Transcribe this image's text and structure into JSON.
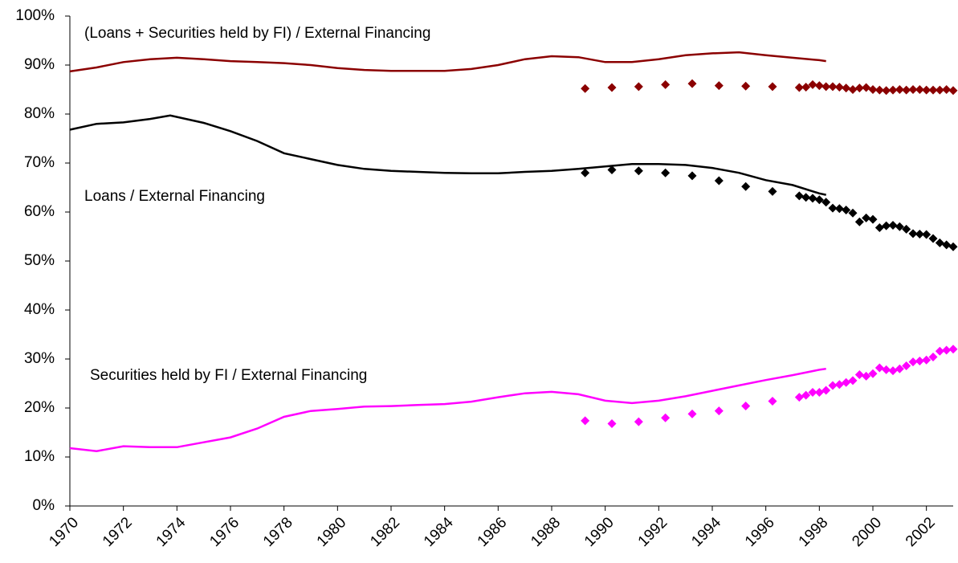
{
  "chart_data": {
    "type": "line",
    "xlim": [
      1970,
      2003
    ],
    "xticks": [
      1970,
      1972,
      1974,
      1976,
      1978,
      1980,
      1982,
      1984,
      1986,
      1988,
      1990,
      1992,
      1994,
      1996,
      1998,
      2000,
      2002
    ],
    "ylim": [
      0,
      100
    ],
    "yticks": [
      {
        "value": 0,
        "label": "0%"
      },
      {
        "value": 10,
        "label": "10%"
      },
      {
        "value": 20,
        "label": "20%"
      },
      {
        "value": 30,
        "label": "30%"
      },
      {
        "value": 40,
        "label": "40%"
      },
      {
        "value": 50,
        "label": "50%"
      },
      {
        "value": 60,
        "label": "60%"
      },
      {
        "value": 70,
        "label": "70%"
      },
      {
        "value": 80,
        "label": "80%"
      },
      {
        "value": 90,
        "label": "90%"
      },
      {
        "value": 100,
        "label": "100%"
      }
    ],
    "series": [
      {
        "name": "(Loans + Securities held by FI) / External Financing",
        "type": "line",
        "color": "#8b0000",
        "x": [
          1970,
          1971,
          1972,
          1973,
          1974,
          1975,
          1976,
          1977,
          1978,
          1979,
          1980,
          1981,
          1982,
          1983,
          1984,
          1985,
          1986,
          1987,
          1988,
          1989,
          1990,
          1991,
          1992,
          1993,
          1994,
          1995,
          1996,
          1997,
          1998,
          1998.25
        ],
        "values": [
          88.7,
          89.5,
          90.6,
          91.2,
          91.5,
          91.2,
          90.8,
          90.6,
          90.4,
          90.0,
          89.4,
          89.0,
          88.8,
          88.8,
          88.8,
          89.2,
          90.0,
          91.2,
          91.8,
          91.6,
          90.6,
          90.6,
          91.2,
          92.0,
          92.4,
          92.6,
          92.0,
          91.5,
          91.0,
          90.8
        ]
      },
      {
        "name": "Loans / External Financing",
        "type": "line",
        "color": "#000000",
        "x": [
          1970,
          1971,
          1972,
          1973,
          1973.75,
          1975,
          1976,
          1977,
          1978,
          1979,
          1980,
          1981,
          1982,
          1983,
          1984,
          1985,
          1986,
          1987,
          1988,
          1989,
          1990,
          1991,
          1992,
          1993,
          1994,
          1995,
          1996,
          1997,
          1998,
          1998.25
        ],
        "values": [
          76.8,
          78.0,
          78.3,
          79.0,
          79.7,
          78.2,
          76.5,
          74.5,
          72.0,
          70.8,
          69.6,
          68.8,
          68.4,
          68.2,
          68.0,
          67.9,
          67.9,
          68.2,
          68.4,
          68.8,
          69.3,
          69.8,
          69.8,
          69.6,
          69.0,
          68.0,
          66.5,
          65.5,
          63.8,
          63.5
        ]
      },
      {
        "name": "Securities held by FI / External Financing",
        "type": "line",
        "color": "#ff00ff",
        "x": [
          1970,
          1971,
          1972,
          1973,
          1974,
          1975,
          1976,
          1977,
          1978,
          1979,
          1980,
          1981,
          1982,
          1983,
          1984,
          1985,
          1986,
          1987,
          1988,
          1989,
          1990,
          1991,
          1992,
          1993,
          1994,
          1995,
          1996,
          1997,
          1998,
          1998.25
        ],
        "values": [
          11.8,
          11.2,
          12.2,
          12.0,
          12.0,
          13.0,
          14.0,
          15.8,
          18.2,
          19.4,
          19.8,
          20.3,
          20.4,
          20.6,
          20.8,
          21.3,
          22.2,
          23.0,
          23.3,
          22.8,
          21.5,
          21.0,
          21.5,
          22.4,
          23.5,
          24.6,
          25.7,
          26.7,
          27.8,
          28.0
        ]
      },
      {
        "type": "scatter",
        "color": "#8b0000",
        "x": [
          1989.25,
          1990.25,
          1991.25,
          1992.25,
          1993.25,
          1994.25,
          1995.25,
          1996.25,
          1997.25,
          1997.5,
          1997.75,
          1998,
          1998.25,
          1998.5,
          1998.75,
          1999,
          1999.25,
          1999.5,
          1999.75,
          2000,
          2000.25,
          2000.5,
          2000.75,
          2001,
          2001.25,
          2001.5,
          2001.75,
          2002,
          2002.25,
          2002.5,
          2002.75,
          2003
        ],
        "values": [
          85.2,
          85.4,
          85.6,
          86.0,
          86.2,
          85.8,
          85.7,
          85.6,
          85.4,
          85.5,
          86.0,
          85.8,
          85.6,
          85.6,
          85.5,
          85.3,
          85.0,
          85.3,
          85.4,
          85.0,
          84.9,
          84.8,
          84.9,
          85.0,
          84.9,
          85.0,
          85.0,
          84.9,
          84.9,
          84.9,
          85.0,
          84.8
        ]
      },
      {
        "type": "scatter",
        "color": "#000000",
        "x": [
          1989.25,
          1990.25,
          1991.25,
          1992.25,
          1993.25,
          1994.25,
          1995.25,
          1996.25,
          1997.25,
          1997.5,
          1997.75,
          1998,
          1998.25,
          1998.5,
          1998.75,
          1999,
          1999.25,
          1999.5,
          1999.75,
          2000,
          2000.25,
          2000.5,
          2000.75,
          2001,
          2001.25,
          2001.5,
          2001.75,
          2002,
          2002.25,
          2002.5,
          2002.75,
          2003
        ],
        "values": [
          68.0,
          68.6,
          68.4,
          68.0,
          67.4,
          66.4,
          65.2,
          64.2,
          63.3,
          63.0,
          62.8,
          62.5,
          62.0,
          60.8,
          60.7,
          60.4,
          59.8,
          58.0,
          58.8,
          58.5,
          56.8,
          57.2,
          57.3,
          57.0,
          56.5,
          55.6,
          55.5,
          55.4,
          54.6,
          53.7,
          53.3,
          52.9
        ]
      },
      {
        "type": "scatter",
        "color": "#ff00ff",
        "x": [
          1989.25,
          1990.25,
          1991.25,
          1992.25,
          1993.25,
          1994.25,
          1995.25,
          1996.25,
          1997.25,
          1997.5,
          1997.75,
          1998,
          1998.25,
          1998.5,
          1998.75,
          1999,
          1999.25,
          1999.5,
          1999.75,
          2000,
          2000.25,
          2000.5,
          2000.75,
          2001,
          2001.25,
          2001.5,
          2001.75,
          2002,
          2002.25,
          2002.5,
          2002.75,
          2003
        ],
        "values": [
          17.4,
          16.8,
          17.2,
          18.0,
          18.8,
          19.4,
          20.4,
          21.4,
          22.2,
          22.6,
          23.2,
          23.2,
          23.6,
          24.6,
          24.8,
          25.2,
          25.6,
          26.8,
          26.5,
          27.0,
          28.2,
          27.8,
          27.6,
          28.0,
          28.6,
          29.4,
          29.6,
          29.8,
          30.4,
          31.6,
          31.8,
          32.0
        ]
      }
    ]
  }
}
